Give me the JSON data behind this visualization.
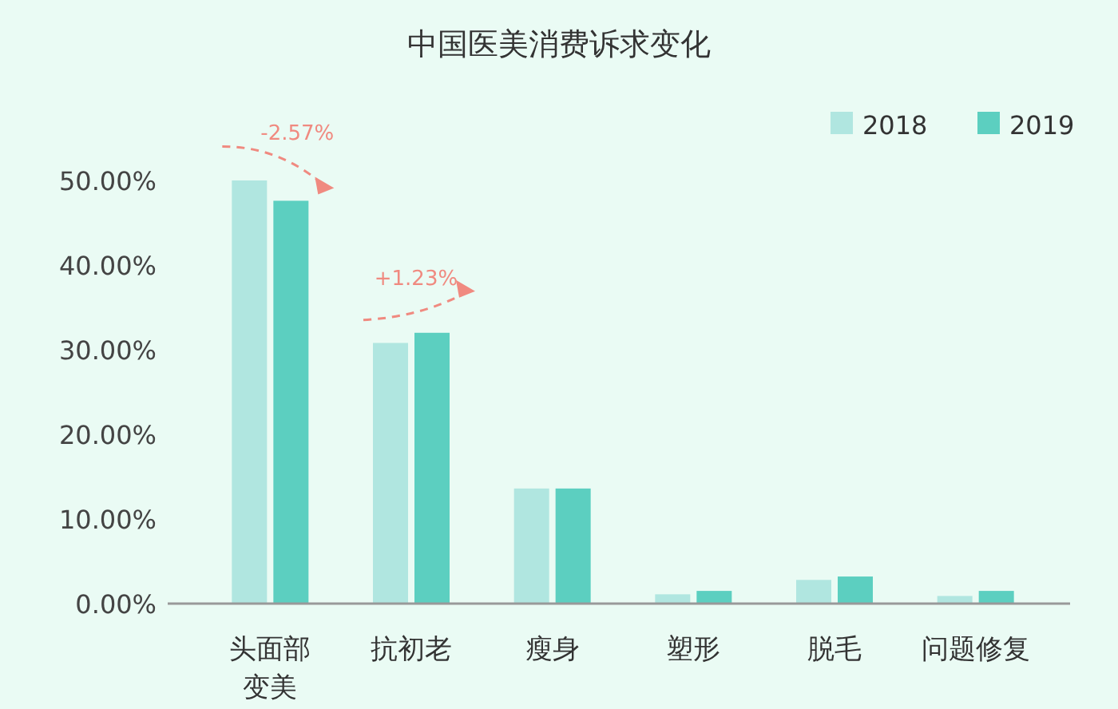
{
  "chart_data": {
    "type": "bar",
    "title": "中国医美消费诉求变化",
    "categories": [
      "头面部变美",
      "抗初老",
      "瘦身",
      "塑形",
      "脱毛",
      "问题修复"
    ],
    "series": [
      {
        "name": "2018",
        "color": "#b0e6e0",
        "values": [
          50.0,
          30.8,
          13.6,
          1.1,
          2.8,
          0.9
        ]
      },
      {
        "name": "2019",
        "color": "#5ccfc0",
        "values": [
          47.6,
          32.0,
          13.6,
          1.5,
          3.2,
          1.5
        ]
      }
    ],
    "ylim": [
      0,
      50
    ],
    "yticks": [
      {
        "value": 0,
        "label": "0.00%"
      },
      {
        "value": 10,
        "label": "10.00%"
      },
      {
        "value": 20,
        "label": "20.00%"
      },
      {
        "value": 30,
        "label": "30.00%"
      },
      {
        "value": 40,
        "label": "40.00%"
      },
      {
        "value": 50,
        "label": "50.00%"
      }
    ],
    "annotations": [
      {
        "text": "-2.57%",
        "x": "头面部变美",
        "y": 47.6
      },
      {
        "text": "+1.23%",
        "x": "抗初老",
        "y": 32.0
      }
    ],
    "grid": false,
    "legend": "top right"
  }
}
